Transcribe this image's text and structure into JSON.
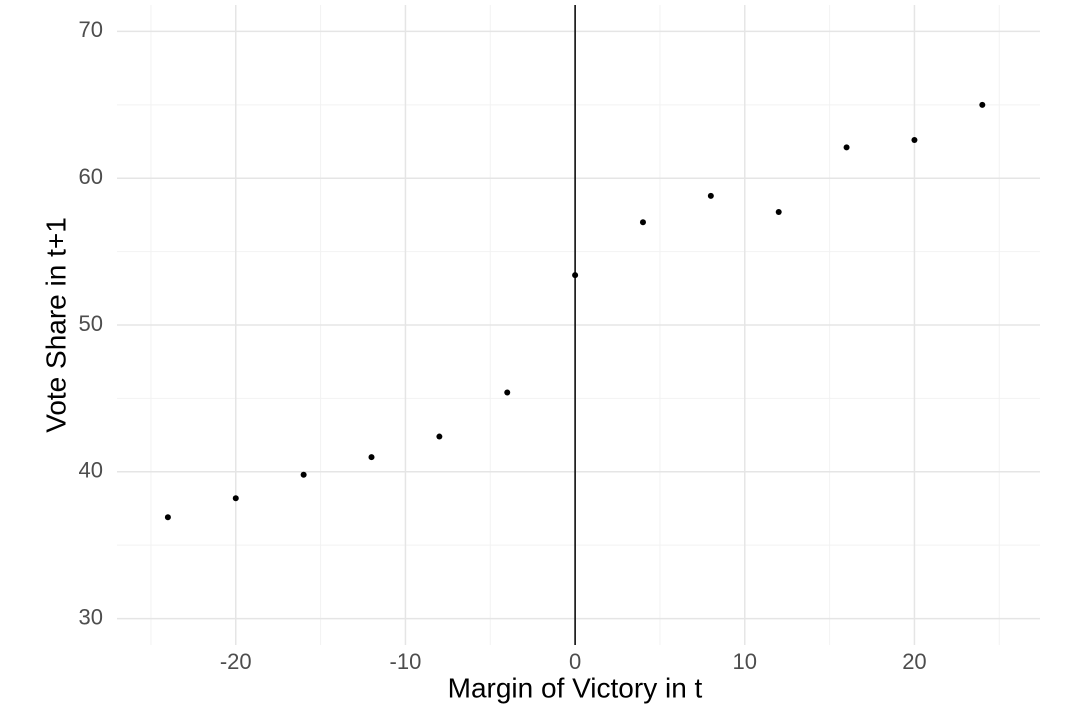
{
  "chart_data": {
    "type": "scatter",
    "x_label": "Margin of Victory in t",
    "y_label": "Vote Share in t+1",
    "x": [
      -24,
      -20,
      -16,
      -12,
      -8,
      -4,
      0,
      4,
      8,
      12,
      16,
      20,
      24
    ],
    "values": [
      36.9,
      38.2,
      39.8,
      41.0,
      42.4,
      45.4,
      53.4,
      57.0,
      58.8,
      57.7,
      62.1,
      62.6,
      65.0
    ],
    "color": "#000000",
    "xlim": [
      -27,
      27.4
    ],
    "ylim": [
      28.2,
      71.8
    ],
    "xticks": [
      -20,
      -10,
      0,
      10,
      20
    ],
    "yticks": [
      30,
      40,
      50,
      60,
      70
    ],
    "xminor": [
      -25,
      -15,
      -5,
      5,
      15,
      25
    ],
    "yminor": [
      35,
      45,
      55,
      65
    ],
    "vline": 0,
    "grid": true
  }
}
